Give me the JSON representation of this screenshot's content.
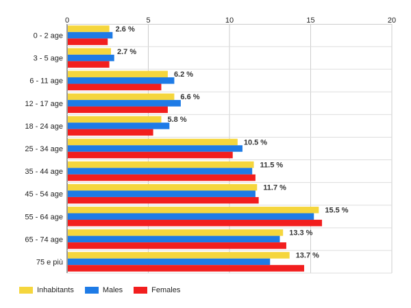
{
  "chart_data": {
    "type": "bar",
    "orientation": "horizontal",
    "title": "",
    "xlabel": "",
    "ylabel": "",
    "xlim": [
      0,
      20
    ],
    "x_ticks": [
      "0",
      "5",
      "10",
      "15",
      "20"
    ],
    "x_axis_position": "top",
    "grid": true,
    "legend_position": "bottom-left",
    "categories": [
      "0 - 2 age",
      "3 - 5 age",
      "6 - 11 age",
      "12 - 17 age",
      "18 - 24 age",
      "25 - 34 age",
      "35 - 44 age",
      "45 - 54 age",
      "55 - 64 age",
      "65 - 74 age",
      "75 e più"
    ],
    "series": [
      {
        "name": "Inhabitants",
        "color": "#f5d63d",
        "values": [
          2.6,
          2.7,
          6.2,
          6.6,
          5.8,
          10.5,
          11.5,
          11.7,
          15.5,
          13.3,
          13.7
        ]
      },
      {
        "name": "Males",
        "color": "#1e7be6",
        "values": [
          2.8,
          2.9,
          6.6,
          7.0,
          6.3,
          10.8,
          11.4,
          11.6,
          15.2,
          13.1,
          12.5
        ]
      },
      {
        "name": "Females",
        "color": "#f21e1e",
        "values": [
          2.5,
          2.6,
          5.8,
          6.2,
          5.3,
          10.2,
          11.6,
          11.8,
          15.7,
          13.5,
          14.6
        ]
      }
    ],
    "data_labels": [
      "2.6 %",
      "2.7 %",
      "6.2 %",
      "6.6 %",
      "5.8 %",
      "10.5 %",
      "11.5 %",
      "11.7 %",
      "15.5 %",
      "13.3 %",
      "13.7 %"
    ]
  }
}
